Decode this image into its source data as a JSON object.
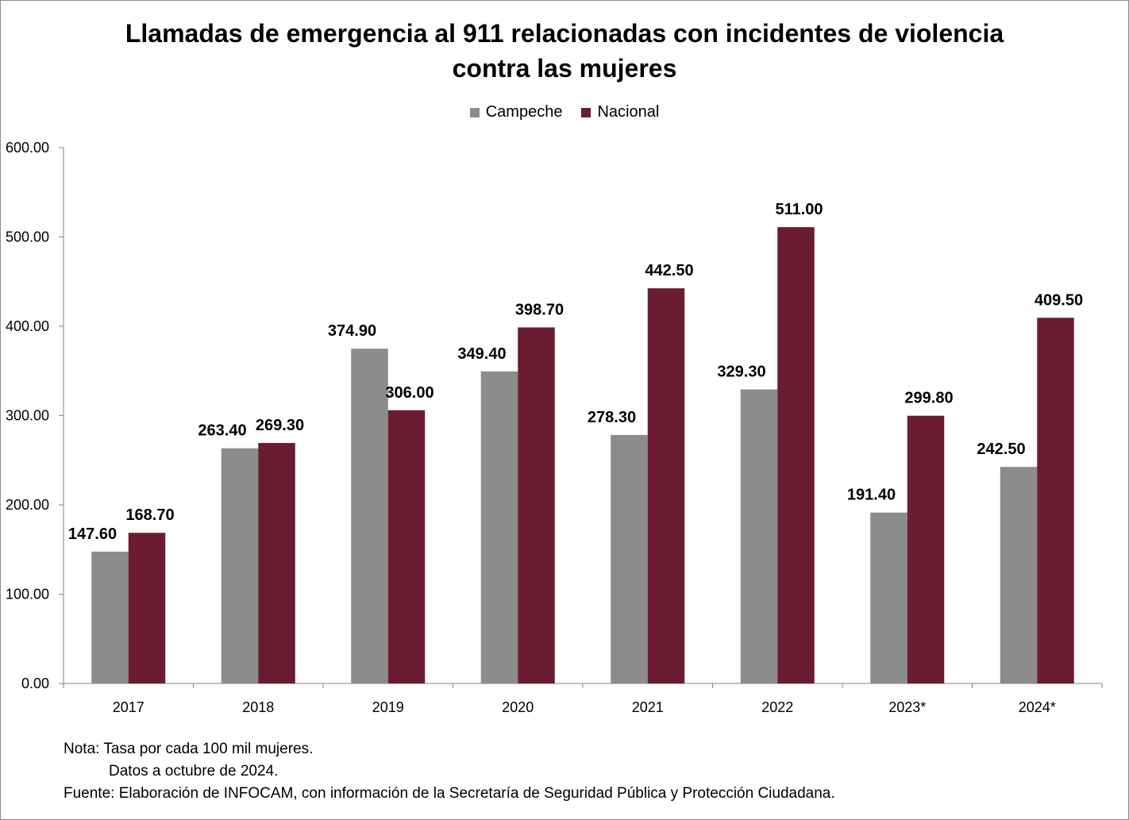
{
  "chart_data": {
    "type": "bar",
    "title_lines": [
      "Llamadas de emergencia al 911 relacionadas con incidentes de violencia",
      "contra las mujeres"
    ],
    "categories": [
      "2017",
      "2018",
      "2019",
      "2020",
      "2021",
      "2022",
      "2023*",
      "2024*"
    ],
    "series": [
      {
        "name": "Campeche",
        "color": "#8c8c8c",
        "values": [
          147.6,
          263.4,
          374.9,
          349.4,
          278.3,
          329.3,
          191.4,
          242.5
        ],
        "labels": [
          "147.60",
          "263.40",
          "374.90",
          "349.40",
          "278.30",
          "329.30",
          "191.40",
          "242.50"
        ]
      },
      {
        "name": "Nacional",
        "color": "#6b1c32",
        "values": [
          168.7,
          269.3,
          306.0,
          398.7,
          442.5,
          511.0,
          299.8,
          409.5
        ],
        "labels": [
          "168.70",
          "269.30",
          "306.00",
          "398.70",
          "442.50",
          "511.00",
          "299.80",
          "409.50"
        ]
      }
    ],
    "ylim": [
      0,
      600
    ],
    "yticks": [
      "0.00",
      "100.00",
      "200.00",
      "300.00",
      "400.00",
      "500.00",
      "600.00"
    ],
    "legend_position": "top",
    "grid": false
  },
  "notes": {
    "line1": "Nota: Tasa por cada 100 mil mujeres.",
    "line2": "Datos a octubre de 2024.",
    "line3": "Fuente: Elaboración de INFOCAM, con información de la Secretaría de Seguridad Pública y Protección Ciudadana."
  }
}
